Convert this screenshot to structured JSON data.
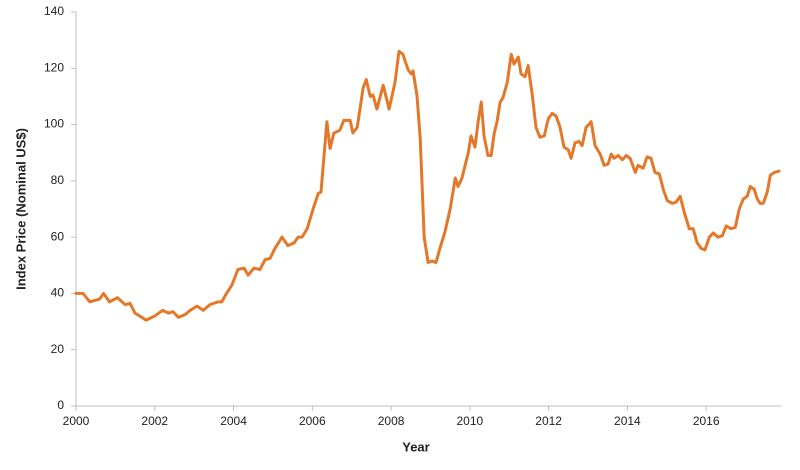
{
  "chart_data": {
    "type": "line",
    "x_label": "Year",
    "y_label": "Index Price (Nominal US$)",
    "color": "#e3782a",
    "xlim": [
      2000,
      2017.9
    ],
    "xticks": [
      2000,
      2002,
      2004,
      2006,
      2008,
      2010,
      2012,
      2014,
      2016
    ],
    "ylim": [
      0,
      140
    ],
    "yticks": [
      0,
      20,
      40,
      60,
      80,
      100,
      120,
      140
    ],
    "x": [
      2000.0,
      2000.18,
      2000.35,
      2000.6,
      2000.7,
      2000.85,
      2001.05,
      2001.25,
      2001.37,
      2001.5,
      2001.78,
      2002.0,
      2002.2,
      2002.35,
      2002.46,
      2002.6,
      2002.77,
      2002.9,
      2003.07,
      2003.23,
      2003.4,
      2003.6,
      2003.7,
      2003.8,
      2003.96,
      2004.11,
      2004.27,
      2004.37,
      2004.52,
      2004.67,
      2004.8,
      2004.93,
      2005.05,
      2005.23,
      2005.38,
      2005.54,
      2005.64,
      2005.74,
      2005.87,
      2006.02,
      2006.15,
      2006.22,
      2006.37,
      2006.45,
      2006.55,
      2006.7,
      2006.8,
      2006.96,
      2007.03,
      2007.14,
      2007.29,
      2007.37,
      2007.47,
      2007.54,
      2007.64,
      2007.8,
      2007.95,
      2008.1,
      2008.2,
      2008.3,
      2008.43,
      2008.51,
      2008.56,
      2008.66,
      2008.74,
      2008.84,
      2008.94,
      2009.04,
      2009.14,
      2009.24,
      2009.37,
      2009.5,
      2009.63,
      2009.7,
      2009.8,
      2009.96,
      2010.03,
      2010.13,
      2010.21,
      2010.29,
      2010.36,
      2010.46,
      2010.54,
      2010.62,
      2010.69,
      2010.77,
      2010.84,
      2010.95,
      2011.05,
      2011.12,
      2011.23,
      2011.3,
      2011.4,
      2011.48,
      2011.58,
      2011.68,
      2011.78,
      2011.89,
      2011.99,
      2012.09,
      2012.19,
      2012.29,
      2012.39,
      2012.5,
      2012.57,
      2012.67,
      2012.77,
      2012.85,
      2012.95,
      2013.08,
      2013.18,
      2013.31,
      2013.41,
      2013.51,
      2013.59,
      2013.66,
      2013.77,
      2013.87,
      2013.97,
      2014.07,
      2014.2,
      2014.27,
      2014.4,
      2014.5,
      2014.6,
      2014.7,
      2014.81,
      2014.91,
      2015.01,
      2015.14,
      2015.24,
      2015.34,
      2015.44,
      2015.57,
      2015.67,
      2015.77,
      2015.87,
      2015.97,
      2016.08,
      2016.18,
      2016.3,
      2016.41,
      2016.51,
      2016.63,
      2016.74,
      2016.84,
      2016.94,
      2017.04,
      2017.12,
      2017.22,
      2017.3,
      2017.37,
      2017.45,
      2017.55,
      2017.63,
      2017.73,
      2017.85
    ],
    "values": [
      40,
      40,
      37,
      38,
      40,
      37,
      38.5,
      36,
      36.5,
      33,
      30.5,
      32,
      34,
      33,
      33.5,
      31.5,
      32.5,
      34,
      35.5,
      34,
      36,
      37,
      37,
      39.5,
      43,
      48.5,
      49,
      46.5,
      49,
      48.5,
      52,
      52.5,
      56,
      60,
      57,
      58,
      60,
      60,
      63,
      70,
      75.5,
      76,
      101,
      91.5,
      97,
      98,
      101.5,
      101.5,
      97,
      99,
      113,
      116,
      110,
      110.5,
      105.5,
      114,
      105.5,
      115,
      126,
      125,
      119.5,
      118,
      119,
      110,
      95,
      60,
      51,
      51.5,
      51,
      56,
      62,
      70,
      81,
      78,
      81,
      90,
      96,
      92,
      101,
      108,
      96,
      89,
      89,
      97,
      101,
      108,
      109.5,
      115,
      125,
      121.5,
      124,
      118,
      117,
      121,
      111,
      99,
      95.5,
      96,
      102,
      104,
      103,
      99,
      92,
      91,
      88,
      93.5,
      94,
      92.5,
      99,
      101,
      92.5,
      89.5,
      85.5,
      86,
      89.5,
      88,
      89,
      87.5,
      89,
      88,
      83,
      85.5,
      84.5,
      88.5,
      88,
      83,
      82.5,
      77,
      73,
      72,
      72.5,
      74.5,
      69,
      63,
      63,
      58,
      56,
      55.5,
      60,
      61.5,
      60,
      60.5,
      64,
      63,
      63.5,
      70,
      73.5,
      74.5,
      78,
      77,
      73.5,
      72,
      72,
      76,
      82,
      83,
      83.5
    ]
  }
}
